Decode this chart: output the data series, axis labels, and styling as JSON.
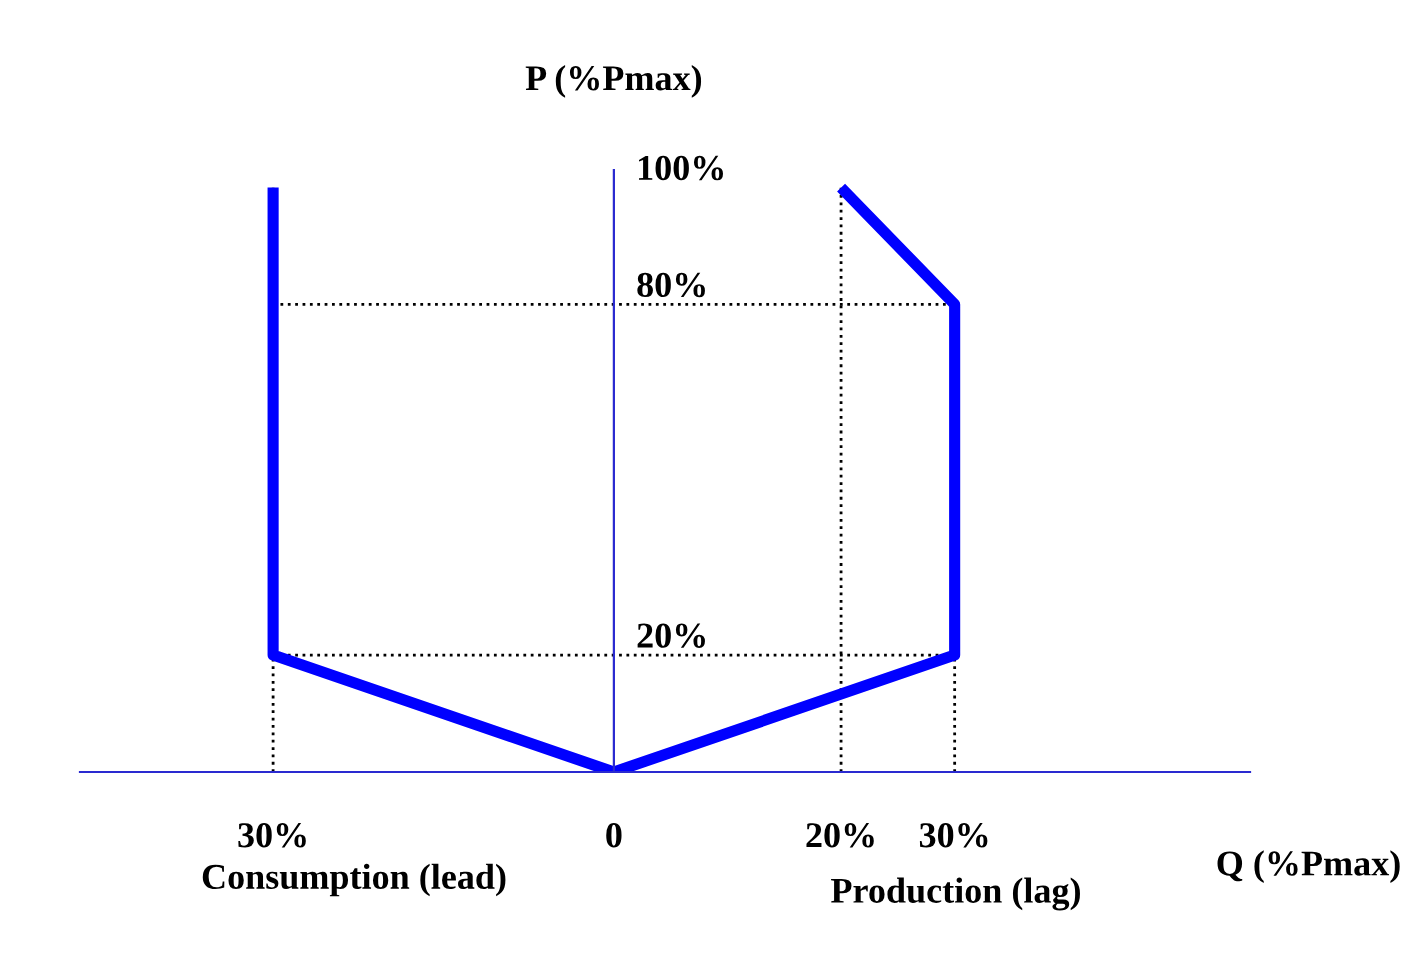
{
  "chart_data": {
    "type": "line",
    "xlabel": "Q (%Pmax)",
    "ylabel": "P (%Pmax)",
    "x": [
      -30,
      -30,
      0,
      30,
      30,
      20
    ],
    "series": [
      {
        "color": "#0000ff",
        "values": [
          100,
          20,
          0,
          20,
          80,
          100
        ]
      }
    ],
    "xlim": [
      -47,
      56
    ],
    "ylim": [
      0,
      103
    ],
    "xticks": [
      {
        "value": -30,
        "label": "30%"
      },
      0,
      {
        "value": 20,
        "label": "20%"
      },
      {
        "value": 30,
        "label": "30%"
      }
    ],
    "yticks": [
      {
        "value": 20,
        "label": "20%"
      },
      {
        "value": 80,
        "label": "80%"
      },
      {
        "value": 100,
        "label": "100%"
      }
    ],
    "ref_lines": [
      {
        "axis": "y",
        "value": 80,
        "line_style": "dotted",
        "color": "#000000"
      },
      {
        "axis": "y",
        "value": 20,
        "line_style": "dotted",
        "color": "#000000"
      },
      {
        "axis": "x",
        "value": -30,
        "line_style": "dotted",
        "color": "#000000"
      },
      {
        "axis": "x",
        "value": 20,
        "line_style": "dotted",
        "color": "#000000"
      },
      {
        "axis": "x",
        "value": 30,
        "line_style": "dotted",
        "color": "#000000"
      }
    ],
    "annotations": [
      "Consumption (lead)",
      "Production (lag)"
    ],
    "grid": false,
    "legend": false
  }
}
